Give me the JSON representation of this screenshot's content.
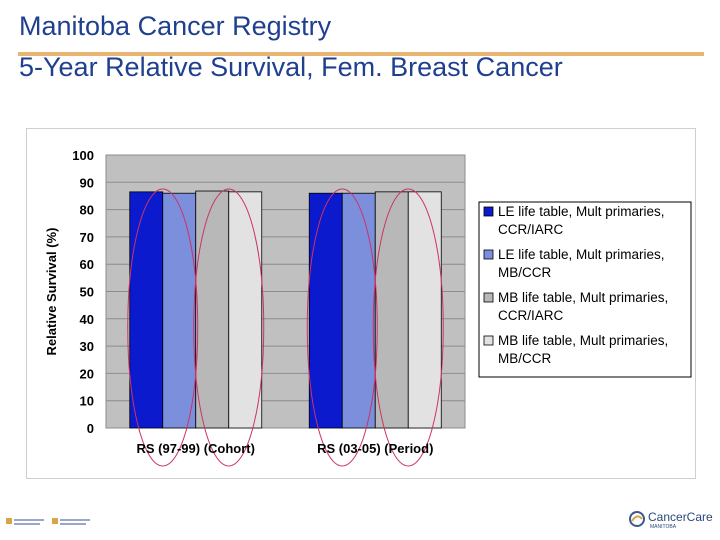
{
  "title_line1": "Manitoba Cancer Registry",
  "title_line2": "5-Year Relative Survival, Fem. Breast Cancer",
  "chart_data": {
    "type": "bar",
    "categories": [
      "RS (97-99) (Cohort)",
      "RS (03-05) (Period)"
    ],
    "series": [
      {
        "name": "LE life table, Mult primaries, CCR/IARC",
        "color": "#0a1acc",
        "values": [
          86.5,
          86.0
        ]
      },
      {
        "name": "LE life table, Mult primaries, MB/CCR",
        "color": "#7b8fdc",
        "values": [
          86.0,
          86.0
        ]
      },
      {
        "name": "MB life table, Mult primaries, CCR/IARC",
        "color": "#b8b8b8",
        "values": [
          86.8,
          86.5
        ]
      },
      {
        "name": "MB life table, Mult primaries, MB/CCR",
        "color": "#e2e2e2",
        "values": [
          86.5,
          86.5
        ]
      }
    ],
    "ylabel": "Relative Survival (%)",
    "xlabel": "",
    "ylim": [
      0,
      100
    ],
    "yticks": [
      0,
      10,
      20,
      30,
      40,
      50,
      60,
      70,
      80,
      90,
      100
    ],
    "legend_position": "right",
    "legend_labels": [
      [
        "LE life table, Mult primaries,",
        "CCR/IARC"
      ],
      [
        "LE life table, Mult primaries,",
        "MB/CCR"
      ],
      [
        "MB life table, Mult primaries,",
        "CCR/IARC"
      ],
      [
        "MB life table, Mult primaries,",
        "MB/CCR"
      ]
    ],
    "plot_bg": "#c0c0c0",
    "annotation_color": "#cc3366"
  },
  "footer": {
    "right_logo_text": "CancerCare",
    "right_logo_sub": "MANITOBA"
  }
}
